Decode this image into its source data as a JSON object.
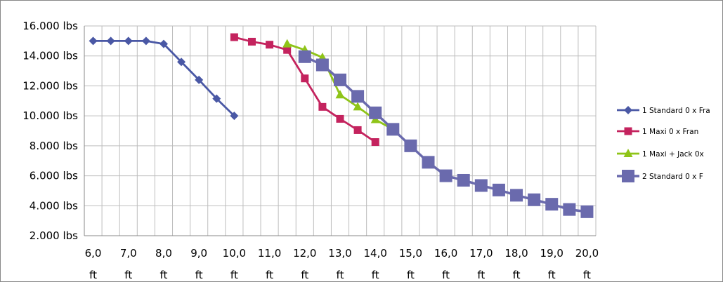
{
  "chart_data": {
    "type": "line",
    "grid": true,
    "legend_position": "right",
    "ylim": [
      2000,
      16000
    ],
    "y_ticks": [
      {
        "value": 16000,
        "label": "16.000 lbs"
      },
      {
        "value": 14000,
        "label": "14.000 lbs"
      },
      {
        "value": 12000,
        "label": "12.000 lbs"
      },
      {
        "value": 10000,
        "label": "10.000 lbs"
      },
      {
        "value": 8000,
        "label": "8.000 lbs"
      },
      {
        "value": 6000,
        "label": "6.000 lbs"
      },
      {
        "value": 4000,
        "label": "4.000 lbs"
      },
      {
        "value": 2000,
        "label": "2.000 lbs"
      }
    ],
    "x_categories": [
      "6,0",
      "6,5",
      "7,0",
      "7,5",
      "8,0",
      "8,5",
      "9,0",
      "9,5",
      "10,0",
      "10,5",
      "11,0",
      "11,5",
      "12,0",
      "12,5",
      "13,0",
      "13,5",
      "14,0",
      "14,5",
      "15,0",
      "15,5",
      "16,0",
      "16,5",
      "17,0",
      "17,5",
      "18,0",
      "18,5",
      "19,0",
      "19,5",
      "20,0"
    ],
    "x_tick_labels": [
      {
        "index": 0,
        "value": "6,0",
        "unit": "ft"
      },
      {
        "index": 2,
        "value": "7,0",
        "unit": "ft"
      },
      {
        "index": 4,
        "value": "8,0",
        "unit": "ft"
      },
      {
        "index": 6,
        "value": "9,0",
        "unit": "ft"
      },
      {
        "index": 8,
        "value": "10,0",
        "unit": "ft"
      },
      {
        "index": 10,
        "value": "11,0",
        "unit": "ft"
      },
      {
        "index": 12,
        "value": "12,0",
        "unit": "ft"
      },
      {
        "index": 14,
        "value": "13,0",
        "unit": "ft"
      },
      {
        "index": 16,
        "value": "14,0",
        "unit": "ft"
      },
      {
        "index": 18,
        "value": "15,0",
        "unit": "ft"
      },
      {
        "index": 20,
        "value": "16,0",
        "unit": "ft"
      },
      {
        "index": 22,
        "value": "17,0",
        "unit": "ft"
      },
      {
        "index": 24,
        "value": "18,0",
        "unit": "ft"
      },
      {
        "index": 26,
        "value": "19,0",
        "unit": "ft"
      },
      {
        "index": 28,
        "value": "20,0",
        "unit": "ft"
      }
    ],
    "series": [
      {
        "name": "1 Standard 0 x Fra",
        "color": "#4a58a5",
        "marker": "diamond",
        "x": [
          "6,0",
          "6,5",
          "7,0",
          "7,5",
          "8,0",
          "8,5",
          "9,0",
          "9,5",
          "10,0"
        ],
        "values": [
          15000,
          15000,
          15000,
          15000,
          14800,
          13600,
          12400,
          11150,
          10000
        ]
      },
      {
        "name": "1 Maxi     0 x Fran",
        "color": "#c4235e",
        "marker": "square",
        "x": [
          "10,0",
          "10,5",
          "11,0",
          "11,5",
          "12,0",
          "12,5",
          "13,0",
          "13,5",
          "14,0"
        ],
        "values": [
          15250,
          14950,
          14750,
          14400,
          12500,
          10600,
          9800,
          9050,
          8250
        ]
      },
      {
        "name": "1 Maxi + Jack   0x",
        "color": "#8fc418",
        "marker": "triangle",
        "x": [
          "11,5",
          "12,0",
          "12,5",
          "13,0",
          "13,5",
          "14,0",
          "14,5"
        ],
        "values": [
          14800,
          14400,
          13900,
          11400,
          10600,
          9750,
          9100
        ]
      },
      {
        "name": "2 Standard     0 x F",
        "color": "#6a6aad",
        "marker": "big-square",
        "x": [
          "12,0",
          "12,5",
          "13,0",
          "13,5",
          "14,0",
          "14,5",
          "15,0",
          "15,5",
          "16,0",
          "16,5",
          "17,0",
          "17,5",
          "18,0",
          "18,5",
          "19,0",
          "19,5",
          "20,0"
        ],
        "values": [
          13950,
          13400,
          12400,
          11300,
          10200,
          9100,
          8000,
          6900,
          6000,
          5700,
          5350,
          5050,
          4700,
          4400,
          4100,
          3750,
          3600
        ]
      }
    ]
  }
}
